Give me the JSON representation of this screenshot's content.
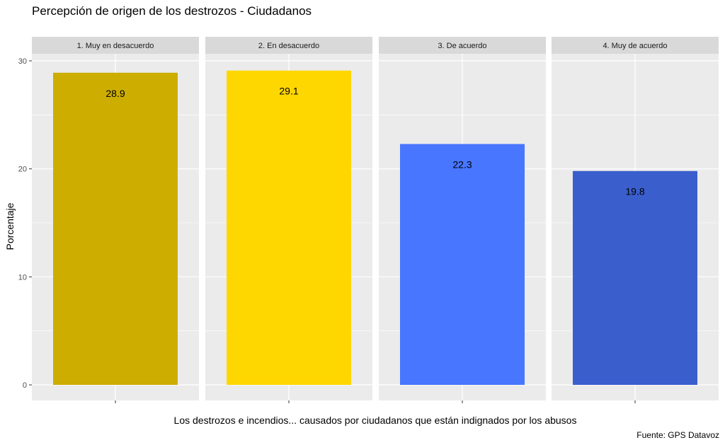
{
  "chart_data": {
    "type": "bar",
    "title": "Percepción de origen de los destrozos - Ciudadanos",
    "xlabel": "Los destrozos e incendios... causados por ciudadanos que están indignados por los abusos",
    "ylabel": "Porcentaje",
    "caption": "Fuente: GPS Datavoz",
    "categories": [
      "1. Muy en desacuerdo",
      "2. En desacuerdo",
      "3. De acuerdo",
      "4. Muy de acuerdo"
    ],
    "values": [
      28.9,
      29.1,
      22.3,
      19.8
    ],
    "value_labels": [
      "28.9",
      "29.1",
      "22.3",
      "19.8"
    ],
    "colors": [
      "#CDAD00",
      "#FFD700",
      "#4876FF",
      "#3A5FCD"
    ],
    "ylim": [
      0,
      30
    ],
    "yticks": [
      0,
      10,
      20,
      30
    ],
    "grid": true,
    "facets": true,
    "panel_background": "#EBEBEB",
    "strip_background": "#D9D9D9"
  }
}
